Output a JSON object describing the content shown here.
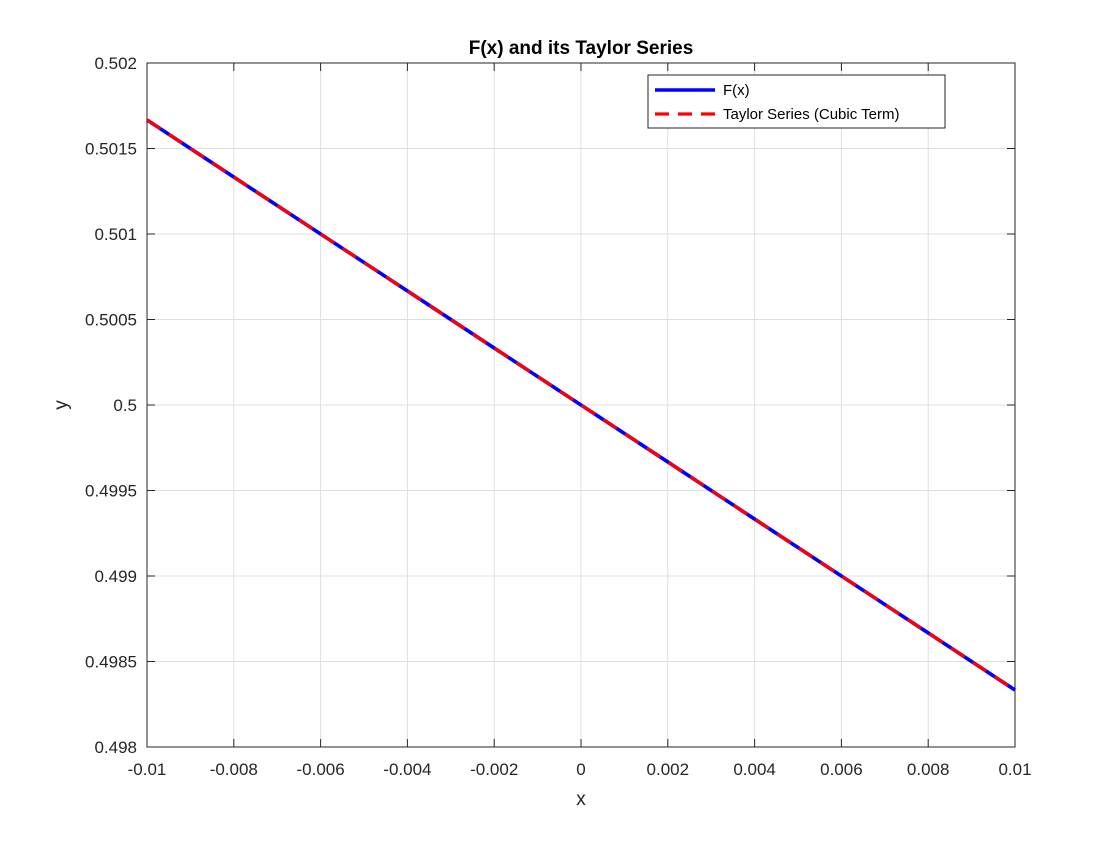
{
  "chart_data": {
    "type": "line",
    "title": "F(x) and its Taylor Series",
    "xlabel": "x",
    "ylabel": "y",
    "xlim": [
      -0.01,
      0.01
    ],
    "ylim": [
      0.498,
      0.502
    ],
    "xticks": [
      -0.01,
      -0.008,
      -0.006,
      -0.004,
      -0.002,
      0,
      0.002,
      0.004,
      0.006,
      0.008,
      0.01
    ],
    "xtick_labels": [
      "-0.01",
      "-0.008",
      "-0.006",
      "-0.004",
      "-0.002",
      "0",
      "0.002",
      "0.004",
      "0.006",
      "0.008",
      "0.01"
    ],
    "yticks": [
      0.498,
      0.4985,
      0.499,
      0.4995,
      0.5,
      0.5005,
      0.501,
      0.5015,
      0.502
    ],
    "ytick_labels": [
      "0.498",
      "0.4985",
      "0.499",
      "0.4995",
      "0.5",
      "0.5005",
      "0.501",
      "0.5015",
      "0.502"
    ],
    "grid": true,
    "legend_position": "top-right",
    "series": [
      {
        "name": "F(x)",
        "color": "#0000ff",
        "style": "solid",
        "x": [
          -0.01,
          -0.008,
          -0.006,
          -0.004,
          -0.002,
          0,
          0.002,
          0.004,
          0.006,
          0.008,
          0.01
        ],
        "y": [
          0.501667,
          0.501333,
          0.501,
          0.500667,
          0.500333,
          0.5,
          0.499667,
          0.499333,
          0.499,
          0.498667,
          0.498333
        ]
      },
      {
        "name": "Taylor Series (Cubic Term)",
        "color": "#ff0000",
        "style": "dashed",
        "x": [
          -0.01,
          -0.008,
          -0.006,
          -0.004,
          -0.002,
          0,
          0.002,
          0.004,
          0.006,
          0.008,
          0.01
        ],
        "y": [
          0.501667,
          0.501333,
          0.501,
          0.500667,
          0.500333,
          0.5,
          0.499667,
          0.499333,
          0.499,
          0.498667,
          0.498333
        ]
      }
    ]
  }
}
